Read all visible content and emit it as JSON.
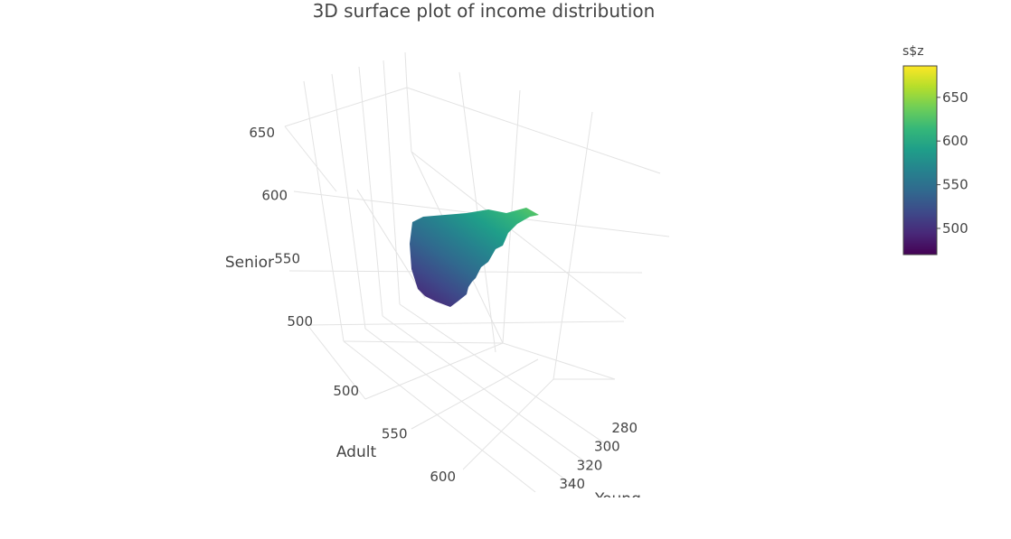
{
  "chart_data": {
    "type": "surface3d",
    "title": "3D surface plot of income distribution",
    "axes": {
      "x": {
        "label": "Young",
        "ticks": [
          280,
          300,
          320,
          340
        ]
      },
      "y": {
        "label": "Adult",
        "ticks": [
          500,
          550,
          600
        ]
      },
      "z": {
        "label": "Senior",
        "ticks": [
          500,
          550,
          600,
          650
        ]
      }
    },
    "colorbar": {
      "title": "s$z",
      "colorscale": "Viridis",
      "range": [
        470,
        686
      ],
      "ticks": [
        500,
        550,
        600,
        650
      ],
      "stops": [
        "#440154",
        "#482878",
        "#3e4989",
        "#31688e",
        "#26828e",
        "#1f9e89",
        "#35b779",
        "#6ece58",
        "#b5de2b",
        "#fde725"
      ]
    },
    "grid": true,
    "background": "#ffffff"
  }
}
